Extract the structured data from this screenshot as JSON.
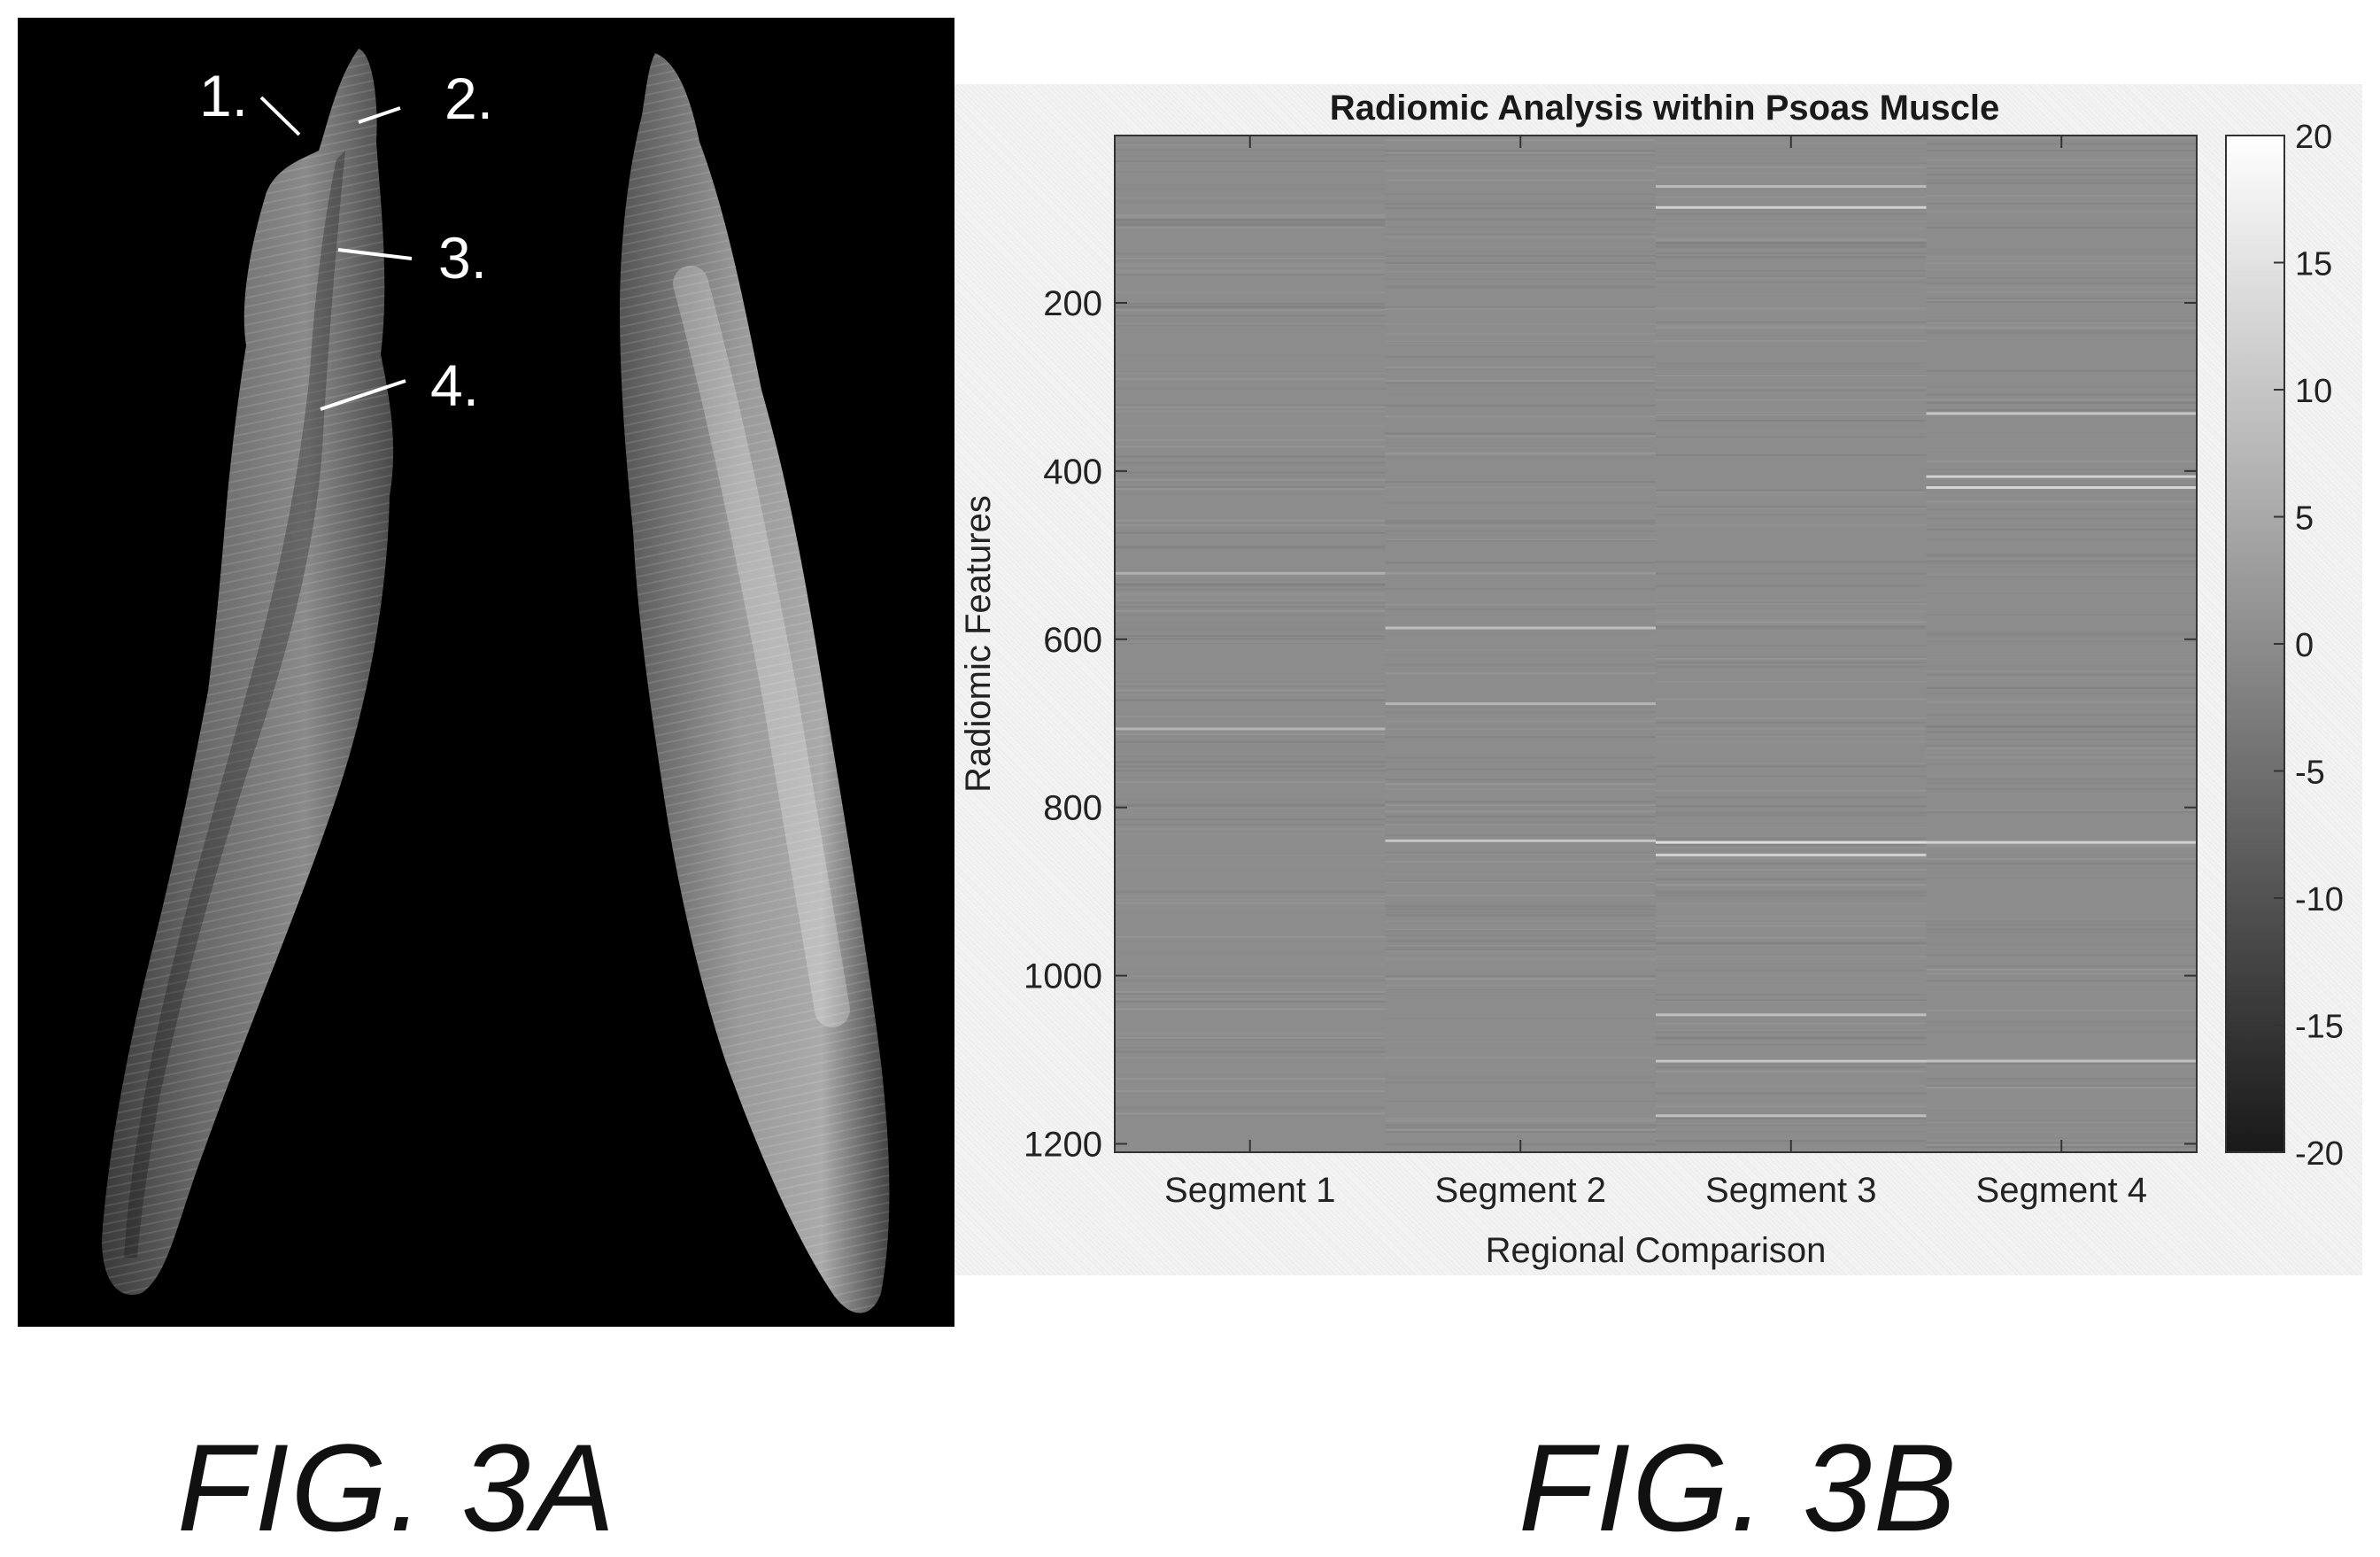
{
  "figure_a": {
    "caption": "FIG. 3A",
    "callouts": [
      "1.",
      "2.",
      "3.",
      "4."
    ]
  },
  "figure_b": {
    "caption": "FIG. 3B"
  },
  "chart_data": {
    "type": "heatmap",
    "title": "Radiomic Analysis within Psoas Muscle",
    "xlabel": "Regional Comparison",
    "ylabel": "Radiomic Features",
    "categories": [
      "Segment 1",
      "Segment 2",
      "Segment 3",
      "Segment 4"
    ],
    "ylim": [
      1,
      1210
    ],
    "y_axis_reversed": true,
    "yticks": [
      200,
      400,
      600,
      800,
      1000,
      1200
    ],
    "colorbar": {
      "min": -20,
      "max": 20,
      "ticks": [
        20,
        15,
        10,
        5,
        0,
        -5,
        -10,
        -15,
        -20
      ],
      "colormap": "gray"
    },
    "highlight_rows": [
      {
        "segment": 1,
        "feature": 520,
        "value": 6
      },
      {
        "segment": 1,
        "feature": 705,
        "value": 7
      },
      {
        "segment": 2,
        "feature": 585,
        "value": 9
      },
      {
        "segment": 2,
        "feature": 675,
        "value": 7
      },
      {
        "segment": 2,
        "feature": 838,
        "value": 10
      },
      {
        "segment": 3,
        "feature": 60,
        "value": 8
      },
      {
        "segment": 3,
        "feature": 85,
        "value": 12
      },
      {
        "segment": 3,
        "feature": 840,
        "value": 14
      },
      {
        "segment": 3,
        "feature": 855,
        "value": 12
      },
      {
        "segment": 3,
        "feature": 1045,
        "value": 9
      },
      {
        "segment": 3,
        "feature": 1100,
        "value": 10
      },
      {
        "segment": 3,
        "feature": 1165,
        "value": 9
      },
      {
        "segment": 4,
        "feature": 330,
        "value": 10
      },
      {
        "segment": 4,
        "feature": 405,
        "value": 12
      },
      {
        "segment": 4,
        "feature": 418,
        "value": 13
      },
      {
        "segment": 4,
        "feature": 840,
        "value": 12
      },
      {
        "segment": 4,
        "feature": 1100,
        "value": 9
      }
    ]
  }
}
